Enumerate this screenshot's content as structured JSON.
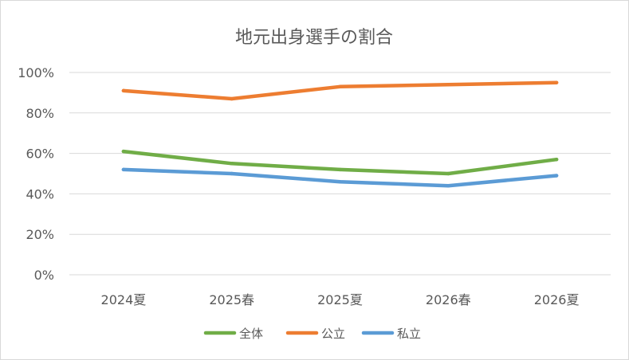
{
  "chart_data": {
    "type": "line",
    "title": "地元出身選手の割合",
    "categories": [
      "2024夏",
      "2025春",
      "2025夏",
      "2026春",
      "2026夏"
    ],
    "ylim": [
      0,
      100
    ],
    "yticks": [
      0,
      20,
      40,
      60,
      80,
      100
    ],
    "ytick_labels": [
      "0%",
      "20%",
      "40%",
      "60%",
      "80%",
      "100%"
    ],
    "grid": true,
    "legend_position": "bottom",
    "series": [
      {
        "name": "全体",
        "color": "#70ad47",
        "values": [
          61,
          55,
          52,
          50,
          57
        ]
      },
      {
        "name": "公立",
        "color": "#ed7d31",
        "values": [
          91,
          87,
          93,
          94,
          95
        ]
      },
      {
        "name": "私立",
        "color": "#5b9bd5",
        "values": [
          52,
          50,
          46,
          44,
          49
        ]
      }
    ]
  }
}
